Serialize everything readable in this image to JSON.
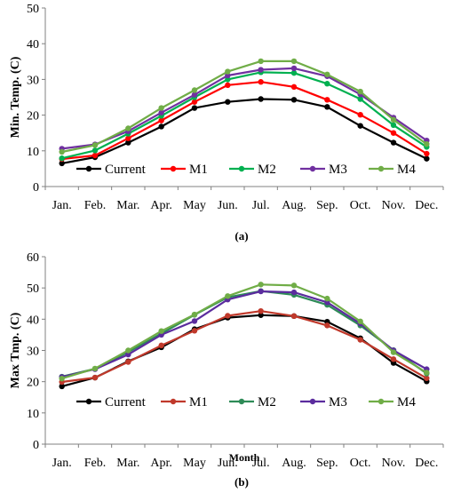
{
  "colors": {
    "top": {
      "Current": "#000000",
      "M1": "#ff0000",
      "M2": "#00b050",
      "M3": "#7030a0",
      "M4": "#70ad47"
    },
    "bottom": {
      "Current": "#000000",
      "M1": "#c0392b",
      "M2": "#2e8b57",
      "M3": "#5b2c9e",
      "M4": "#70ad47"
    },
    "axis": "#808080"
  },
  "chart_data": [
    {
      "type": "line",
      "caption": "(a)",
      "ylabel": "Min. Temp. (C)",
      "xlabel": "",
      "ylim": [
        0,
        50
      ],
      "yticks": [
        0,
        10,
        20,
        30,
        40,
        50
      ],
      "grid": false,
      "legend": "inside-bottom",
      "categories": [
        "Jan.",
        "Feb.",
        "Mar.",
        "Apr.",
        "May",
        "Jun.",
        "Jul.",
        "Aug.",
        "Sep.",
        "Oct.",
        "Nov.",
        "Dec."
      ],
      "series": [
        {
          "name": "Current",
          "values": [
            6.5,
            8.2,
            12.3,
            16.8,
            22.0,
            23.7,
            24.5,
            24.3,
            22.3,
            17.0,
            12.3,
            7.8
          ]
        },
        {
          "name": "M1",
          "values": [
            7.7,
            8.7,
            13.5,
            18.5,
            23.7,
            28.4,
            29.3,
            27.9,
            24.3,
            20.1,
            15.0,
            9.2
          ]
        },
        {
          "name": "M2",
          "values": [
            7.9,
            10.1,
            14.8,
            19.8,
            25.0,
            30.0,
            32.0,
            31.8,
            28.8,
            24.5,
            17.2,
            11.1
          ]
        },
        {
          "name": "M3",
          "values": [
            10.6,
            11.8,
            15.5,
            20.7,
            25.7,
            31.1,
            32.7,
            33.1,
            30.9,
            25.8,
            19.3,
            12.9
          ]
        },
        {
          "name": "M4",
          "values": [
            9.7,
            11.6,
            16.3,
            22.0,
            27.0,
            32.2,
            35.1,
            35.1,
            31.4,
            26.6,
            18.7,
            11.9
          ]
        }
      ]
    },
    {
      "type": "line",
      "caption": "(b)",
      "ylabel": "Max Tmp. (C)",
      "xlabel": "Month",
      "ylim": [
        0,
        60
      ],
      "yticks": [
        0,
        10,
        20,
        30,
        40,
        50,
        60
      ],
      "grid": false,
      "legend": "inside-bottom",
      "categories": [
        "Jan.",
        "Feb.",
        "Mar.",
        "Apr.",
        "May",
        "Jun.",
        "Jul.",
        "Aug.",
        "Sep.",
        "Oct.",
        "Nov.",
        "Dec."
      ],
      "series": [
        {
          "name": "Current",
          "values": [
            18.5,
            21.3,
            26.5,
            31.0,
            36.8,
            40.5,
            41.3,
            41.0,
            39.2,
            33.9,
            26.0,
            20.1
          ]
        },
        {
          "name": "M1",
          "values": [
            19.9,
            21.3,
            26.3,
            31.6,
            36.3,
            41.1,
            42.6,
            41.0,
            38.0,
            33.4,
            27.2,
            21.1
          ]
        },
        {
          "name": "M2",
          "values": [
            21.6,
            24.1,
            29.5,
            35.4,
            41.4,
            47.0,
            49.0,
            47.8,
            44.6,
            38.0,
            30.1,
            22.6
          ]
        },
        {
          "name": "M3",
          "values": [
            21.5,
            24.0,
            28.7,
            35.0,
            39.4,
            46.3,
            48.9,
            48.6,
            45.4,
            38.6,
            30.0,
            24.0
          ]
        },
        {
          "name": "M4",
          "values": [
            21.0,
            24.2,
            30.0,
            36.2,
            41.5,
            47.4,
            51.1,
            50.8,
            46.6,
            39.3,
            29.4,
            22.9
          ]
        }
      ]
    }
  ]
}
